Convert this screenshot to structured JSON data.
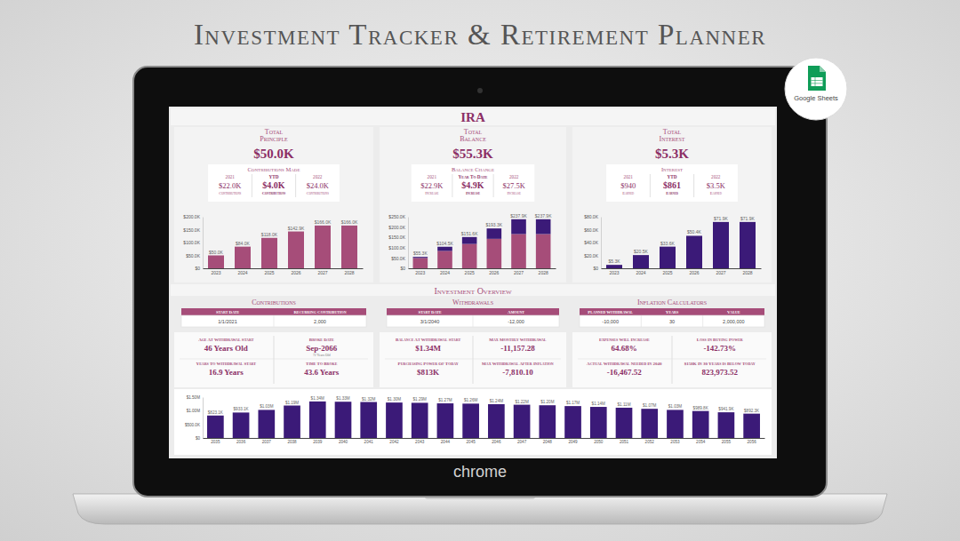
{
  "page": {
    "title": "Investment Tracker & Retirement Planner",
    "badge": "Google Sheets",
    "browser": "chrome"
  },
  "dashboard": {
    "title": "IRA",
    "panels": [
      {
        "title": "Total Principle",
        "value": "$50.0K",
        "box_title": "Contributions Made",
        "stats": [
          {
            "label": "2021",
            "value": "$22.0K",
            "caption": "Contributions"
          },
          {
            "label": "YTD",
            "value": "$4.0K",
            "caption": "Contributions"
          },
          {
            "label": "2022",
            "value": "$24.0K",
            "caption": "Contributions"
          }
        ]
      },
      {
        "title": "Total Balance",
        "value": "$55.3K",
        "box_title": "Balance Change",
        "stats": [
          {
            "label": "2021",
            "value": "$22.9K",
            "caption": "Increase"
          },
          {
            "label": "Year To Date",
            "value": "$4.9K",
            "caption": "Increase"
          },
          {
            "label": "2022",
            "value": "$27.5K",
            "caption": "Increase"
          }
        ]
      },
      {
        "title": "Total Interest",
        "value": "$5.3K",
        "box_title": "Interest",
        "stats": [
          {
            "label": "2021",
            "value": "$940",
            "caption": "Earned"
          },
          {
            "label": "YTD",
            "value": "$861",
            "caption": "Earned"
          },
          {
            "label": "2022",
            "value": "$3.5K",
            "caption": "Earned"
          }
        ]
      }
    ]
  },
  "overview": {
    "title": "Investment Overview",
    "sections": [
      {
        "title": "Contributions",
        "headers": [
          "Start Date",
          "Recurring Contribution"
        ],
        "row": [
          "1/1/2021",
          "2,000"
        ],
        "stats": [
          {
            "label": "Age At Withdrawal Start",
            "value": "46 Years Old"
          },
          {
            "label": "Broke Date",
            "value": "Sep-2066",
            "note": "72 Years Old"
          },
          {
            "label": "Years To Withdrawal Start",
            "value": "16.9 Years"
          },
          {
            "label": "Time To Broke",
            "value": "43.6 Years"
          }
        ]
      },
      {
        "title": "Withdrawals",
        "headers": [
          "Start Date",
          "Amount"
        ],
        "row": [
          "3/1/2040",
          "-12,000"
        ],
        "stats": [
          {
            "label": "Balance At Withdrawal Start",
            "value": "$1.34M"
          },
          {
            "label": "Max Monthly Withdrawal",
            "value": "-11,157.28"
          },
          {
            "label": "Purchasing Power Of Today",
            "value": "$813K"
          },
          {
            "label": "Max Withdrawal After Inflation",
            "value": "-7,810.10"
          }
        ]
      },
      {
        "title": "Inflation Calculators",
        "headers": [
          "Planned Withdrawal",
          "Years",
          "Value"
        ],
        "row": [
          "-10,000",
          "30",
          "2,000,000"
        ],
        "stats": [
          {
            "label": "Expenses Will Increase",
            "value": "64.68%"
          },
          {
            "label": "Loss In Buying Power",
            "value": "-142.73%"
          },
          {
            "label": "Actual Withdrawal Needed In 2040",
            "value": "-16,467.52"
          },
          {
            "label": "$158K In 30 Years Is Below Today",
            "value": "823,973.52"
          }
        ]
      }
    ]
  },
  "chart_data": [
    {
      "type": "bar",
      "categories": [
        "2023",
        "2024",
        "2025",
        "2026",
        "2027",
        "2028"
      ],
      "values": [
        50000,
        84000,
        118000,
        142900,
        166000,
        166000
      ],
      "value_labels": [
        "$50.0K",
        "$84.0K",
        "$118.0K",
        "$142.9K",
        "$166.0K",
        "$166.0K"
      ],
      "data_labels": true,
      "color": "#a64d79",
      "ylim": [
        0,
        200000
      ],
      "yticks": [
        {
          "value": 0,
          "label": "$0"
        },
        {
          "value": 50000,
          "label": "$50.0K"
        },
        {
          "value": 100000,
          "label": "$100.0K"
        },
        {
          "value": 150000,
          "label": "$150.0K"
        },
        {
          "value": 200000,
          "label": "$200.0K"
        }
      ],
      "grid": false
    },
    {
      "type": "bar",
      "stacked": true,
      "categories": [
        "2023",
        "2024",
        "2025",
        "2026",
        "2027",
        "2028"
      ],
      "series": [
        {
          "color": "#a64d79",
          "values": [
            50000,
            84000,
            118000,
            142900,
            166000,
            166000
          ]
        },
        {
          "color": "#3b1a78",
          "values": [
            5300,
            20500,
            33600,
            50400,
            71900,
            71900
          ]
        }
      ],
      "totals": [
        55300,
        104500,
        151600,
        193300,
        237900,
        237900
      ],
      "total_labels": [
        "$55.3K",
        "$104.5K",
        "$151.6K",
        "$193.3K",
        "$237.9K",
        "$237.9K"
      ],
      "ylim": [
        0,
        250000
      ],
      "yticks": [
        {
          "value": 0,
          "label": "$0"
        },
        {
          "value": 50000,
          "label": "$50.0K"
        },
        {
          "value": 100000,
          "label": "$100.0K"
        },
        {
          "value": 150000,
          "label": "$150.0K"
        },
        {
          "value": 200000,
          "label": "$200.0K"
        },
        {
          "value": 250000,
          "label": "$250.0K"
        }
      ],
      "grid": false
    },
    {
      "type": "bar",
      "categories": [
        "2023",
        "2024",
        "2025",
        "2026",
        "2027",
        "2028"
      ],
      "values": [
        5300,
        20500,
        33600,
        50400,
        71900,
        71900
      ],
      "value_labels": [
        "$5.3K",
        "$20.5K",
        "$33.6K",
        "$50.4K",
        "$71.9K",
        "$71.9K"
      ],
      "data_labels": true,
      "color": "#3b1a78",
      "ylim": [
        0,
        80000
      ],
      "yticks": [
        {
          "value": 0,
          "label": "$0"
        },
        {
          "value": 20000,
          "label": "$20.0K"
        },
        {
          "value": 40000,
          "label": "$40.0K"
        },
        {
          "value": 60000,
          "label": "$60.0K"
        },
        {
          "value": 80000,
          "label": "$80.0K"
        }
      ],
      "grid": false
    },
    {
      "type": "bar",
      "categories": [
        "2035",
        "2036",
        "2037",
        "2038",
        "2039",
        "2040",
        "2041",
        "2042",
        "2043",
        "2044",
        "2045",
        "2046",
        "2047",
        "2048",
        "2049",
        "2050",
        "2051",
        "2052",
        "2053",
        "2054",
        "2055",
        "2056"
      ],
      "values": [
        823100,
        933100,
        1030000,
        1190000,
        1340000,
        1330000,
        1320000,
        1300000,
        1290000,
        1270000,
        1260000,
        1240000,
        1220000,
        1200000,
        1170000,
        1140000,
        1110000,
        1070000,
        1030000,
        989800,
        941900,
        892300
      ],
      "value_labels": [
        "$823.1K",
        "$933.1K",
        "$1.03M",
        "$1.19M",
        "$1.34M",
        "$1.33M",
        "$1.32M",
        "$1.30M",
        "$1.29M",
        "$1.27M",
        "$1.26M",
        "$1.24M",
        "$1.22M",
        "$1.20M",
        "$1.17M",
        "$1.14M",
        "$1.11M",
        "$1.07M",
        "$1.03M",
        "$989.8K",
        "$941.9K",
        "$892.3K"
      ],
      "data_labels": true,
      "color": "#3b1a78",
      "ylim": [
        0,
        1500000
      ],
      "yticks": [
        {
          "value": 0,
          "label": "$0"
        },
        {
          "value": 500000,
          "label": "$500.0K"
        },
        {
          "value": 1000000,
          "label": "$1.00M"
        },
        {
          "value": 1500000,
          "label": "$1.50M"
        }
      ],
      "grid": false
    }
  ]
}
